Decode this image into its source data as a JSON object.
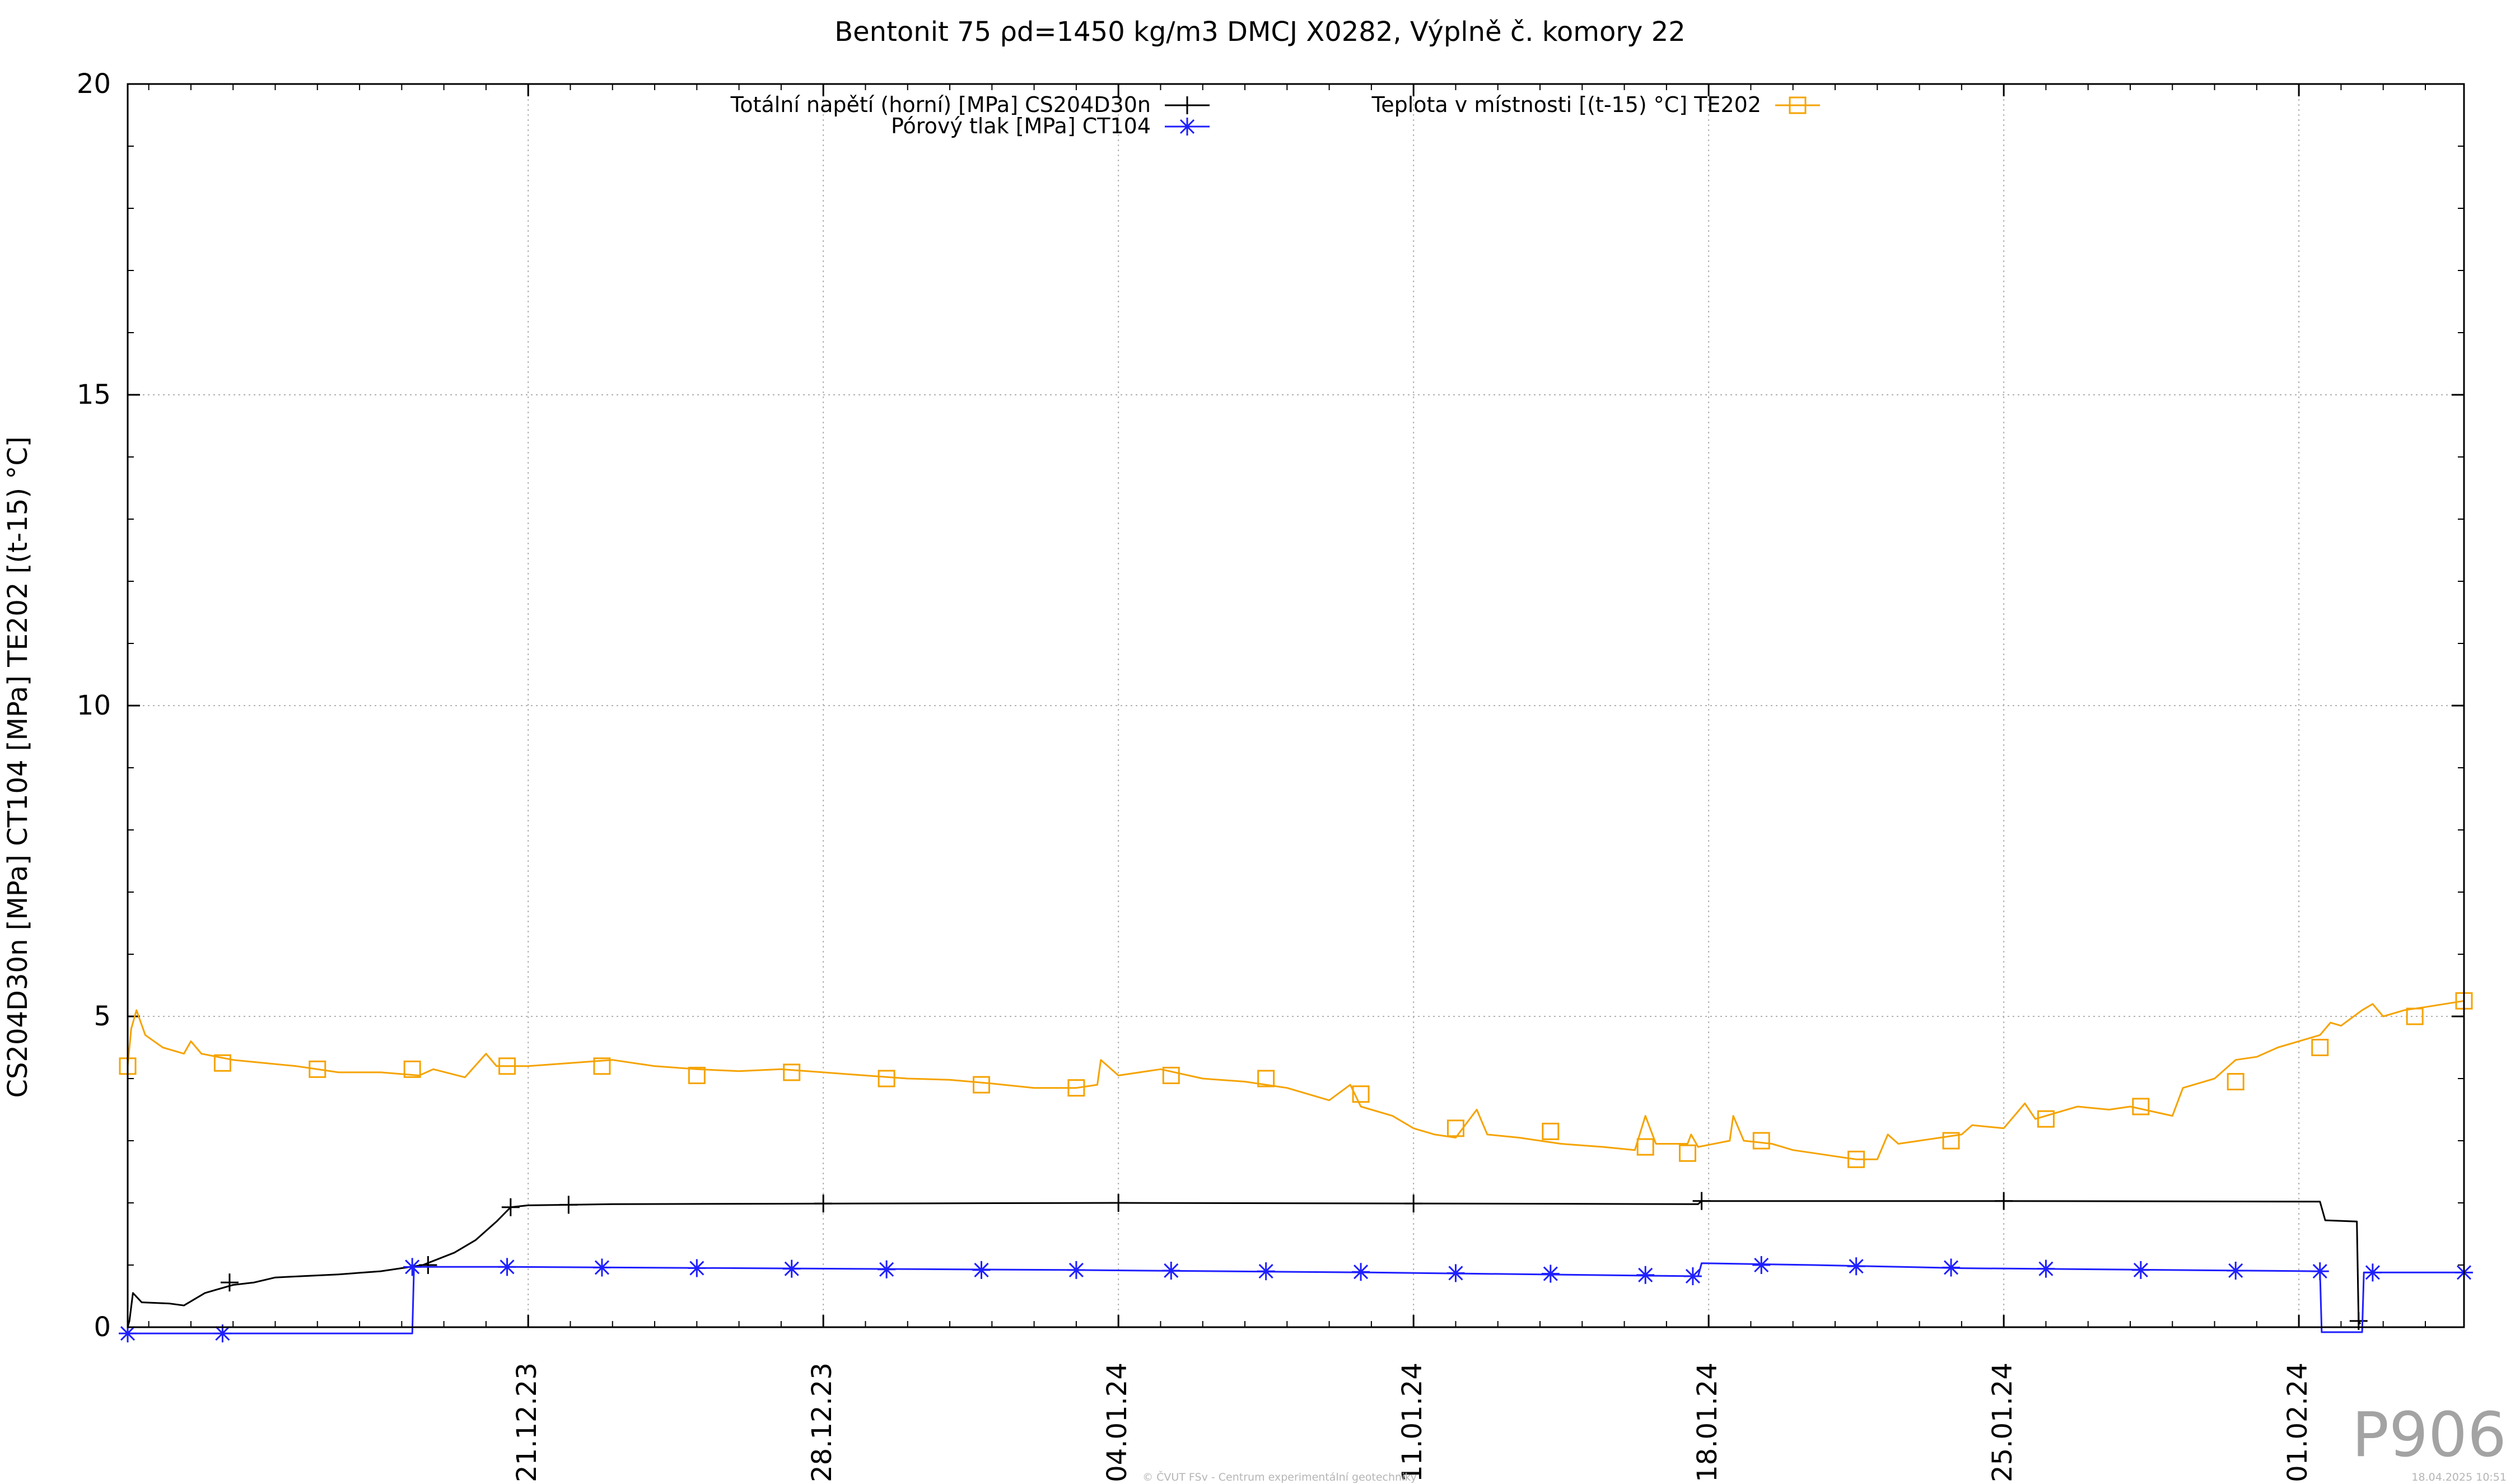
{
  "chart_data": {
    "type": "line",
    "title": "Bentonit 75 ρd=1450 kg/m3 DMCJ X0282, Výplně č. komory 22",
    "xlabel": "",
    "ylabel": "CS204D30n [MPa] CT104 [MPa] TE202 [(t-15) °C]",
    "ylim": [
      0,
      20
    ],
    "yticks": [
      "0",
      "5",
      "10",
      "15",
      "20"
    ],
    "x_axis": "date",
    "xlim": [
      "2023-12-11T12:00",
      "2024-02-04T22:00"
    ],
    "xticks": [
      "21.12.23",
      "28.12.23",
      "04.01.24",
      "11.01.24",
      "18.01.24",
      "25.01.24",
      "01.02.24"
    ],
    "grid": true,
    "legend_placement": "top",
    "series": [
      {
        "name": "Totální napětí (horní) [MPa] CS204D30n",
        "color": "#000000",
        "marker": "plus",
        "points": [
          [
            "2023-12-11T12:00",
            0.0
          ],
          [
            "2023-12-11T13:00",
            0.1
          ],
          [
            "2023-12-11T15:00",
            0.55
          ],
          [
            "2023-12-11T20:00",
            0.4
          ],
          [
            "2023-12-12T12:00",
            0.38
          ],
          [
            "2023-12-12T20:00",
            0.35
          ],
          [
            "2023-12-13T08:00",
            0.55
          ],
          [
            "2023-12-14T00:00",
            0.68
          ],
          [
            "2023-12-14T12:00",
            0.72
          ],
          [
            "2023-12-15T00:00",
            0.8
          ],
          [
            "2023-12-16T12:00",
            0.85
          ],
          [
            "2023-12-17T12:00",
            0.9
          ],
          [
            "2023-12-18T12:00",
            1.0
          ],
          [
            "2023-12-19T06:00",
            1.2
          ],
          [
            "2023-12-19T18:00",
            1.4
          ],
          [
            "2023-12-20T06:00",
            1.7
          ],
          [
            "2023-12-20T14:00",
            1.93
          ],
          [
            "2023-12-21T00:00",
            1.96
          ],
          [
            "2023-12-23T00:00",
            1.98
          ],
          [
            "2024-01-04T00:00",
            2.0
          ],
          [
            "2024-01-11T00:00",
            1.99
          ],
          [
            "2024-01-17T18:00",
            1.98
          ],
          [
            "2024-01-17T20:00",
            2.03
          ],
          [
            "2024-01-25T00:00",
            2.03
          ],
          [
            "2024-02-01T12:00",
            2.02
          ],
          [
            "2024-02-01T15:00",
            1.72
          ],
          [
            "2024-02-02T09:00",
            1.7
          ],
          [
            "2024-02-02T10:00",
            0.1
          ],
          [
            "2024-02-02T11:00",
            0.05
          ]
        ],
        "marker_points": [
          [
            "2023-12-13T22:00",
            0.72
          ],
          [
            "2023-12-18T15:00",
            1.0
          ],
          [
            "2023-12-20T14:00",
            1.93
          ],
          [
            "2023-12-21T23:00",
            1.97
          ],
          [
            "2023-12-28T00:00",
            1.99
          ],
          [
            "2024-01-04T00:00",
            2.0
          ],
          [
            "2024-01-11T00:00",
            1.99
          ],
          [
            "2024-01-17T20:00",
            2.03
          ],
          [
            "2024-01-25T00:00",
            2.03
          ],
          [
            "2024-02-02T10:00",
            0.1
          ]
        ]
      },
      {
        "name": "Pórový tlak [MPa] CT104",
        "color": "#1f1fff",
        "marker": "star",
        "points": [
          [
            "2023-12-11T12:00",
            -0.1
          ],
          [
            "2023-12-18T06:00",
            -0.1
          ],
          [
            "2023-12-18T07:00",
            0.97
          ],
          [
            "2023-12-20T12:00",
            0.97
          ],
          [
            "2024-01-03T00:00",
            0.92
          ],
          [
            "2024-01-10T00:00",
            0.88
          ],
          [
            "2024-01-17T18:00",
            0.82
          ],
          [
            "2024-01-17T20:00",
            1.03
          ],
          [
            "2024-01-20T12:00",
            1.0
          ],
          [
            "2024-01-24T00:00",
            0.95
          ],
          [
            "2024-02-01T12:00",
            0.9
          ],
          [
            "2024-02-01T13:00",
            -0.08
          ],
          [
            "2024-02-02T12:00",
            -0.08
          ],
          [
            "2024-02-02T13:00",
            0.88
          ],
          [
            "2024-02-04T22:00",
            0.88
          ]
        ],
        "marker_points": [
          [
            "2023-12-11T12:00",
            -0.1
          ],
          [
            "2023-12-13T18:00",
            -0.1
          ],
          [
            "2023-12-18T06:00",
            0.97
          ],
          [
            "2023-12-20T12:00",
            0.97
          ],
          [
            "2023-12-22T18:00",
            0.96
          ],
          [
            "2023-12-25T00:00",
            0.95
          ],
          [
            "2023-12-27T06:00",
            0.94
          ],
          [
            "2023-12-29T12:00",
            0.93
          ],
          [
            "2023-12-31T18:00",
            0.92
          ],
          [
            "2024-01-03T00:00",
            0.92
          ],
          [
            "2024-01-05T06:00",
            0.91
          ],
          [
            "2024-01-07T12:00",
            0.9
          ],
          [
            "2024-01-09T18:00",
            0.89
          ],
          [
            "2024-01-12T00:00",
            0.87
          ],
          [
            "2024-01-14T06:00",
            0.86
          ],
          [
            "2024-01-16T12:00",
            0.84
          ],
          [
            "2024-01-17T15:00",
            0.82
          ],
          [
            "2024-01-19T06:00",
            1.0
          ],
          [
            "2024-01-21T12:00",
            0.98
          ],
          [
            "2024-01-23T18:00",
            0.96
          ],
          [
            "2024-01-26T00:00",
            0.94
          ],
          [
            "2024-01-28T06:00",
            0.92
          ],
          [
            "2024-01-30T12:00",
            0.91
          ],
          [
            "2024-02-01T12:00",
            0.9
          ],
          [
            "2024-02-02T18:00",
            0.88
          ],
          [
            "2024-02-04T22:00",
            0.88
          ]
        ]
      },
      {
        "name": "Teplota v místnosti [(t-15) °C] TE202",
        "color": "#f5a300",
        "marker": "square",
        "points": [
          [
            "2023-12-11T12:00",
            4.2
          ],
          [
            "2023-12-11T14:00",
            4.8
          ],
          [
            "2023-12-11T17:00",
            5.1
          ],
          [
            "2023-12-11T22:00",
            4.7
          ],
          [
            "2023-12-12T08:00",
            4.5
          ],
          [
            "2023-12-12T20:00",
            4.4
          ],
          [
            "2023-12-13T00:00",
            4.6
          ],
          [
            "2023-12-13T06:00",
            4.4
          ],
          [
            "2023-12-14T00:00",
            4.3
          ],
          [
            "2023-12-15T12:00",
            4.2
          ],
          [
            "2023-12-16T12:00",
            4.1
          ],
          [
            "2023-12-17T12:00",
            4.1
          ],
          [
            "2023-12-18T10:00",
            4.05
          ],
          [
            "2023-12-18T18:00",
            4.15
          ],
          [
            "2023-12-19T12:00",
            4.02
          ],
          [
            "2023-12-20T00:00",
            4.4
          ],
          [
            "2023-12-20T06:00",
            4.2
          ],
          [
            "2023-12-21T00:00",
            4.2
          ],
          [
            "2023-12-22T00:00",
            4.25
          ],
          [
            "2023-12-23T00:00",
            4.3
          ],
          [
            "2023-12-24T00:00",
            4.2
          ],
          [
            "2023-12-25T00:00",
            4.15
          ],
          [
            "2023-12-26T00:00",
            4.12
          ],
          [
            "2023-12-27T00:00",
            4.15
          ],
          [
            "2023-12-28T00:00",
            4.1
          ],
          [
            "2023-12-29T00:00",
            4.05
          ],
          [
            "2023-12-30T00:00",
            4.0
          ],
          [
            "2023-12-31T00:00",
            3.98
          ],
          [
            "2024-01-01T00:00",
            3.92
          ],
          [
            "2024-01-02T00:00",
            3.85
          ],
          [
            "2024-01-03T00:00",
            3.85
          ],
          [
            "2024-01-03T12:00",
            3.9
          ],
          [
            "2024-01-03T14:00",
            4.3
          ],
          [
            "2024-01-04T00:00",
            4.05
          ],
          [
            "2024-01-05T00:00",
            4.15
          ],
          [
            "2024-01-06T00:00",
            4.0
          ],
          [
            "2024-01-07T00:00",
            3.95
          ],
          [
            "2024-01-08T00:00",
            3.85
          ],
          [
            "2024-01-09T00:00",
            3.65
          ],
          [
            "2024-01-09T12:00",
            3.9
          ],
          [
            "2024-01-09T18:00",
            3.55
          ],
          [
            "2024-01-10T00:00",
            3.5
          ],
          [
            "2024-01-10T12:00",
            3.4
          ],
          [
            "2024-01-11T00:00",
            3.2
          ],
          [
            "2024-01-11T12:00",
            3.1
          ],
          [
            "2024-01-12T00:00",
            3.05
          ],
          [
            "2024-01-12T12:00",
            3.5
          ],
          [
            "2024-01-12T18:00",
            3.1
          ],
          [
            "2024-01-13T12:00",
            3.05
          ],
          [
            "2024-01-14T12:00",
            2.95
          ],
          [
            "2024-01-15T12:00",
            2.9
          ],
          [
            "2024-01-16T06:00",
            2.85
          ],
          [
            "2024-01-16T12:00",
            3.4
          ],
          [
            "2024-01-16T18:00",
            2.95
          ],
          [
            "2024-01-17T12:00",
            2.95
          ],
          [
            "2024-01-17T14:00",
            3.1
          ],
          [
            "2024-01-17T18:00",
            2.9
          ],
          [
            "2024-01-18T12:00",
            3.0
          ],
          [
            "2024-01-18T14:00",
            3.4
          ],
          [
            "2024-01-18T20:00",
            3.0
          ],
          [
            "2024-01-19T12:00",
            2.95
          ],
          [
            "2024-01-20T00:00",
            2.85
          ],
          [
            "2024-01-20T12:00",
            2.8
          ],
          [
            "2024-01-21T00:00",
            2.75
          ],
          [
            "2024-01-21T12:00",
            2.7
          ],
          [
            "2024-01-22T00:00",
            2.7
          ],
          [
            "2024-01-22T06:00",
            3.1
          ],
          [
            "2024-01-22T12:00",
            2.95
          ],
          [
            "2024-01-23T00:00",
            3.0
          ],
          [
            "2024-01-24T00:00",
            3.1
          ],
          [
            "2024-01-24T06:00",
            3.25
          ],
          [
            "2024-01-25T00:00",
            3.2
          ],
          [
            "2024-01-25T12:00",
            3.6
          ],
          [
            "2024-01-25T18:00",
            3.35
          ],
          [
            "2024-01-26T06:00",
            3.45
          ],
          [
            "2024-01-26T18:00",
            3.55
          ],
          [
            "2024-01-27T12:00",
            3.5
          ],
          [
            "2024-01-28T00:00",
            3.55
          ],
          [
            "2024-01-29T00:00",
            3.4
          ],
          [
            "2024-01-29T06:00",
            3.85
          ],
          [
            "2024-01-30T00:00",
            4.0
          ],
          [
            "2024-01-30T12:00",
            4.3
          ],
          [
            "2024-01-31T00:00",
            4.35
          ],
          [
            "2024-01-31T12:00",
            4.5
          ],
          [
            "2024-02-01T00:00",
            4.6
          ],
          [
            "2024-02-01T12:00",
            4.7
          ],
          [
            "2024-02-01T18:00",
            4.9
          ],
          [
            "2024-02-02T00:00",
            4.85
          ],
          [
            "2024-02-02T12:00",
            5.1
          ],
          [
            "2024-02-02T18:00",
            5.2
          ],
          [
            "2024-02-03T00:00",
            5.0
          ],
          [
            "2024-02-03T12:00",
            5.1
          ],
          [
            "2024-02-04T00:00",
            5.15
          ],
          [
            "2024-02-04T22:00",
            5.25
          ]
        ],
        "marker_points": [
          [
            "2023-12-11T12:00",
            4.2
          ],
          [
            "2023-12-13T18:00",
            4.25
          ],
          [
            "2023-12-16T00:00",
            4.15
          ],
          [
            "2023-12-18T06:00",
            4.15
          ],
          [
            "2023-12-20T12:00",
            4.2
          ],
          [
            "2023-12-22T18:00",
            4.2
          ],
          [
            "2023-12-25T00:00",
            4.05
          ],
          [
            "2023-12-27T06:00",
            4.1
          ],
          [
            "2023-12-29T12:00",
            4.0
          ],
          [
            "2023-12-31T18:00",
            3.9
          ],
          [
            "2024-01-03T00:00",
            3.85
          ],
          [
            "2024-01-05T06:00",
            4.05
          ],
          [
            "2024-01-07T12:00",
            4.0
          ],
          [
            "2024-01-09T18:00",
            3.75
          ],
          [
            "2024-01-12T00:00",
            3.2
          ],
          [
            "2024-01-14T06:00",
            3.15
          ],
          [
            "2024-01-16T12:00",
            2.9
          ],
          [
            "2024-01-17T12:00",
            2.8
          ],
          [
            "2024-01-19T06:00",
            3.0
          ],
          [
            "2024-01-21T12:00",
            2.7
          ],
          [
            "2024-01-23T18:00",
            3.0
          ],
          [
            "2024-01-26T00:00",
            3.35
          ],
          [
            "2024-01-28T06:00",
            3.55
          ],
          [
            "2024-01-30T12:00",
            3.95
          ],
          [
            "2024-02-01T12:00",
            4.5
          ],
          [
            "2024-02-03T18:00",
            5.0
          ],
          [
            "2024-02-04T22:00",
            5.25
          ]
        ]
      }
    ]
  },
  "watermark": "P906",
  "footer": "© ČVUT FSv - Centrum experimentální geotechniky",
  "timestamp": "18.04.2025 10:51"
}
